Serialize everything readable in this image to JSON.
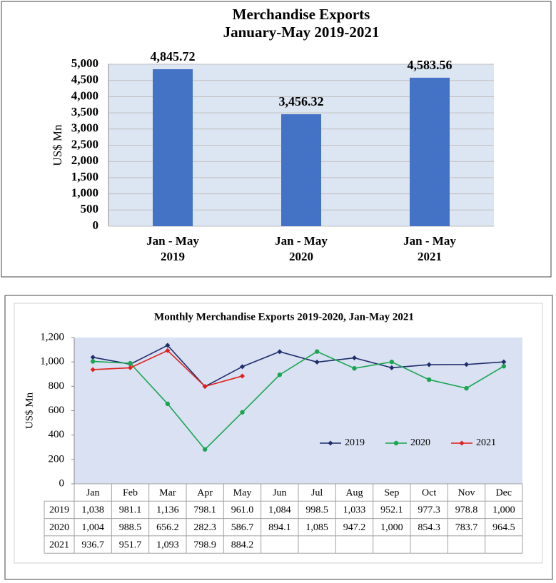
{
  "chart_data": [
    {
      "type": "bar",
      "title": "Merchandise Exports",
      "subtitle": "January-May 2019-2021",
      "y_label": "US$ Mn",
      "categories": [
        "Jan - May\n2019",
        "Jan - May\n2020",
        "Jan - May\n2021"
      ],
      "values": [
        4845.72,
        3456.32,
        4583.56
      ],
      "value_labels": [
        "4,845.72",
        "3,456.32",
        "4,583.56"
      ],
      "color": "#4472c4",
      "ylim": [
        0,
        5000
      ],
      "yticks": [
        0,
        500,
        {
          "value": 1000,
          "label": "1,000"
        },
        {
          "value": 1500,
          "label": "1,500"
        },
        {
          "value": 2000,
          "label": "2,000"
        },
        {
          "value": 2500,
          "label": "2,500"
        },
        {
          "value": 3000,
          "label": "3,000"
        },
        {
          "value": 3500,
          "label": "3,500"
        },
        {
          "value": 4000,
          "label": "4,000"
        },
        {
          "value": 4500,
          "label": "4,500"
        },
        {
          "value": 5000,
          "label": "5,000"
        }
      ],
      "grid": true
    },
    {
      "type": "line",
      "title": "Monthly Merchandise Exports 2019-2020, Jan-May 2021",
      "y_label": "US$ Mn",
      "categories": [
        "Jan",
        "Feb",
        "Mar",
        "Apr",
        "May",
        "Jun",
        "Jul",
        "Aug",
        "Sep",
        "Oct",
        "Nov",
        "Dec"
      ],
      "series": [
        {
          "name": "2019",
          "color": "#1f2d6b",
          "marker": "diamond",
          "values": [
            1038,
            981.1,
            1136,
            798.1,
            961.0,
            1084,
            998.5,
            1033,
            952.1,
            977.3,
            978.8,
            1000
          ],
          "value_labels": [
            "1,038",
            "981.1",
            "1,136",
            "798.1",
            "961.0",
            "1,084",
            "998.5",
            "1,033",
            "952.1",
            "977.3",
            "978.8",
            "1,000"
          ]
        },
        {
          "name": "2020",
          "color": "#1aa650",
          "marker": "circle",
          "values": [
            1004,
            988.5,
            656.2,
            282.3,
            586.7,
            894.1,
            1085,
            947.2,
            1000,
            854.3,
            783.7,
            964.5
          ],
          "value_labels": [
            "1,004",
            "988.5",
            "656.2",
            "282.3",
            "586.7",
            "894.1",
            "1,085",
            "947.2",
            "1,000",
            "854.3",
            "783.7",
            "964.5"
          ]
        },
        {
          "name": "2021",
          "color": "#e0201c",
          "marker": "diamond",
          "values": [
            936.7,
            951.7,
            1093,
            798.9,
            884.2,
            null,
            null,
            null,
            null,
            null,
            null,
            null
          ],
          "value_labels": [
            "936.7",
            "951.7",
            "1,093",
            "798.9",
            "884.2",
            null,
            null,
            null,
            null,
            null,
            null,
            null
          ]
        }
      ],
      "ylim": [
        0,
        1200
      ],
      "yticks": [
        0,
        200,
        400,
        600,
        800,
        {
          "value": 1000,
          "label": "1,000"
        },
        {
          "value": 1200,
          "label": "1,200"
        }
      ],
      "grid": false,
      "legend": "lower right",
      "data_table": true
    }
  ]
}
